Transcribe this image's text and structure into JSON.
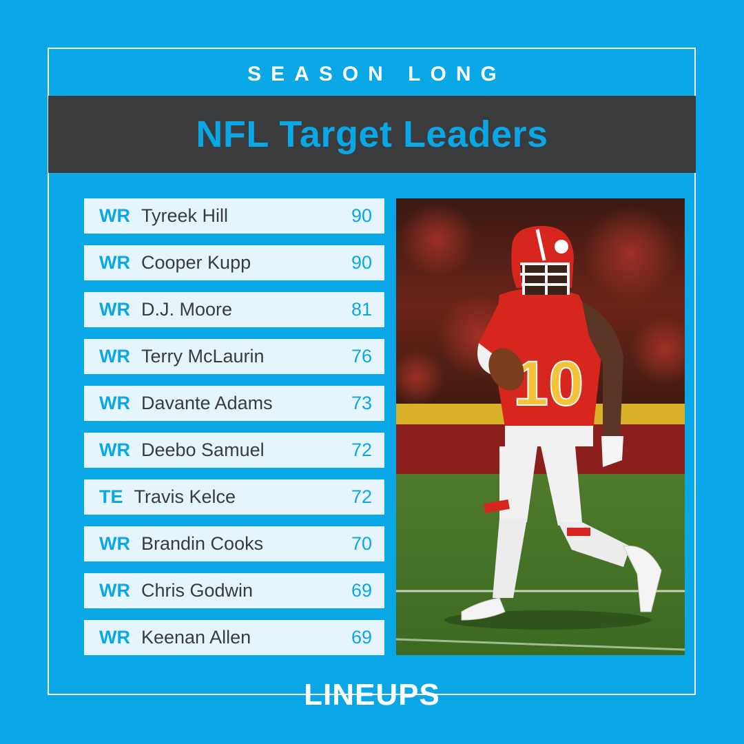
{
  "header": {
    "kicker": "SEASON LONG",
    "title": "NFL Target Leaders"
  },
  "leaders": [
    {
      "pos": "WR",
      "name": "Tyreek Hill",
      "targets": "90"
    },
    {
      "pos": "WR",
      "name": "Cooper Kupp",
      "targets": "90"
    },
    {
      "pos": "WR",
      "name": "D.J. Moore",
      "targets": "81"
    },
    {
      "pos": "WR",
      "name": "Terry McLaurin",
      "targets": "76"
    },
    {
      "pos": "WR",
      "name": "Davante Adams",
      "targets": "73"
    },
    {
      "pos": "WR",
      "name": "Deebo Samuel",
      "targets": "72"
    },
    {
      "pos": "TE",
      "name": "Travis Kelce",
      "targets": "72"
    },
    {
      "pos": "WR",
      "name": "Brandin Cooks",
      "targets": "70"
    },
    {
      "pos": "WR",
      "name": "Chris Godwin",
      "targets": "69"
    },
    {
      "pos": "WR",
      "name": "Keenan Allen",
      "targets": "69"
    }
  ],
  "photo": {
    "jersey_number": "10"
  },
  "brand": {
    "logo_text": "LINEUPS"
  },
  "colors": {
    "background": "#0aa7e6",
    "band": "#3a3b3d",
    "row": "#e6f5fc",
    "jersey": "#d7261e",
    "jersey_numbers": "#f5c33b"
  }
}
